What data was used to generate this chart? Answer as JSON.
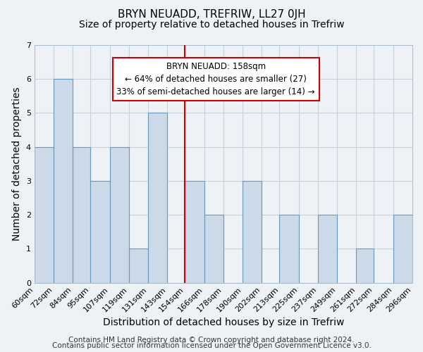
{
  "title": "BRYN NEUADD, TREFRIW, LL27 0JH",
  "subtitle": "Size of property relative to detached houses in Trefriw",
  "xlabel": "Distribution of detached houses by size in Trefriw",
  "ylabel": "Number of detached properties",
  "bin_edges": [
    60,
    72,
    84,
    95,
    107,
    119,
    131,
    143,
    154,
    166,
    178,
    190,
    202,
    213,
    225,
    237,
    249,
    261,
    272,
    284,
    296
  ],
  "counts": [
    4,
    6,
    4,
    3,
    4,
    1,
    5,
    0,
    3,
    2,
    0,
    3,
    0,
    2,
    0,
    2,
    0,
    1,
    0,
    2
  ],
  "bar_color": "#ccd9e8",
  "bar_edge_color": "#6699bb",
  "grid_color": "#c8d0dc",
  "vline_x": 154,
  "vline_color": "#cc0000",
  "ylim": [
    0,
    7
  ],
  "yticks": [
    0,
    1,
    2,
    3,
    4,
    5,
    6,
    7
  ],
  "tick_labels": [
    "60sqm",
    "72sqm",
    "84sqm",
    "95sqm",
    "107sqm",
    "119sqm",
    "131sqm",
    "143sqm",
    "154sqm",
    "166sqm",
    "178sqm",
    "190sqm",
    "202sqm",
    "213sqm",
    "225sqm",
    "237sqm",
    "249sqm",
    "261sqm",
    "272sqm",
    "284sqm",
    "296sqm"
  ],
  "annotation_title": "BRYN NEUADD: 158sqm",
  "annotation_line1": "← 64% of detached houses are smaller (27)",
  "annotation_line2": "33% of semi-detached houses are larger (14) →",
  "footer1": "Contains HM Land Registry data © Crown copyright and database right 2024.",
  "footer2": "Contains public sector information licensed under the Open Government Licence v3.0.",
  "background_color": "#eef2f7",
  "plot_bg_color": "#eef2f7",
  "title_fontsize": 11,
  "subtitle_fontsize": 10,
  "axis_label_fontsize": 10,
  "tick_fontsize": 8,
  "annotation_fontsize": 8.5,
  "footer_fontsize": 7.5
}
